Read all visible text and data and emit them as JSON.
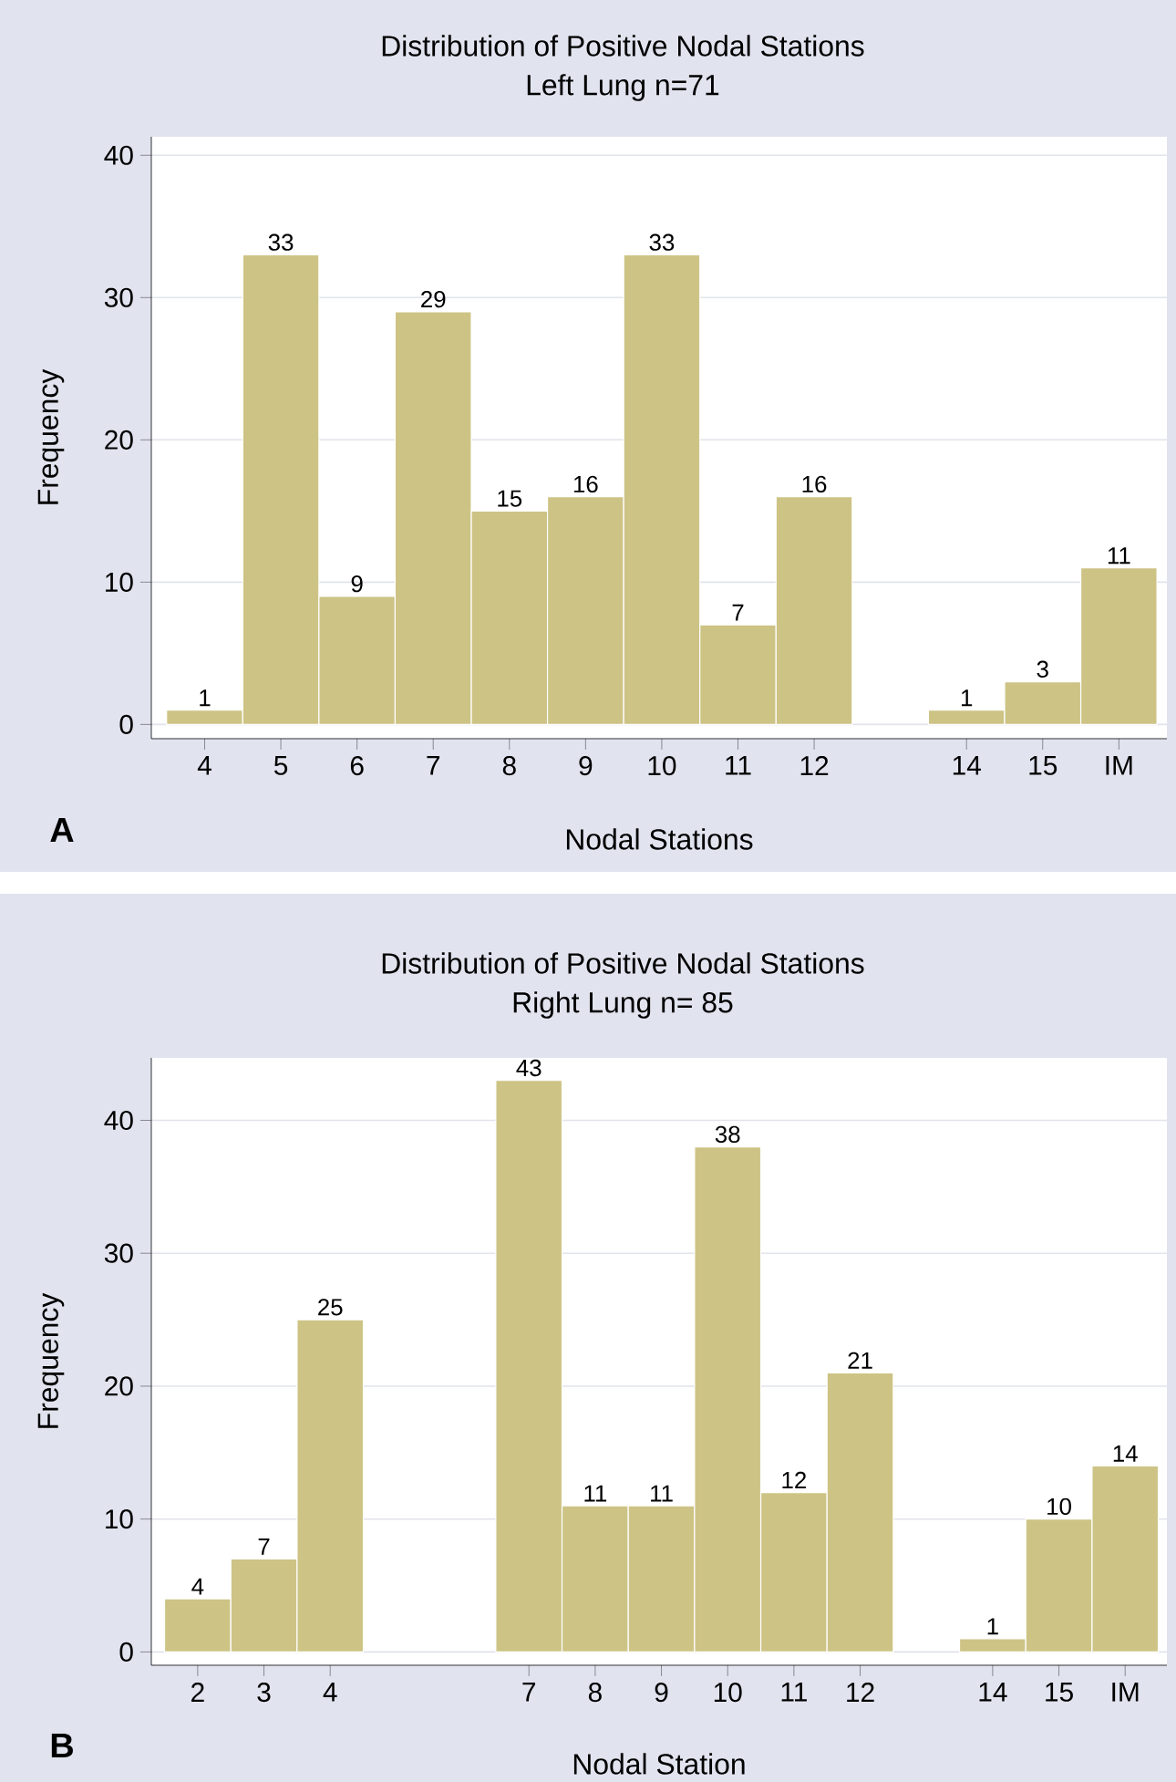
{
  "chart_data": [
    {
      "type": "bar",
      "title": "Distribution of Positive Nodal Stations",
      "subtitle": "Left Lung n=71",
      "xlabel": "Nodal Stations",
      "ylabel": "Frequency",
      "categories": [
        "4",
        "5",
        "6",
        "7",
        "8",
        "9",
        "10",
        "11",
        "12",
        null,
        "14",
        "15",
        "IM"
      ],
      "values": [
        1,
        33,
        9,
        29,
        15,
        16,
        33,
        7,
        16,
        null,
        1,
        3,
        11
      ],
      "color": "#cdc385",
      "ylim": [
        -1,
        41.3
      ],
      "yticks": [
        0,
        10,
        20,
        30,
        40
      ],
      "grid": "y",
      "data_labels": true,
      "annotations": [
        "A"
      ]
    },
    {
      "type": "bar",
      "title": "Distribution of Positive Nodal Stations",
      "subtitle": "Right Lung n= 85",
      "xlabel": "Nodal Station",
      "ylabel": "Frequency",
      "categories": [
        "2",
        "3",
        "4",
        null,
        null,
        "7",
        "8",
        "9",
        "10",
        "11",
        "12",
        null,
        "14",
        "15",
        "IM"
      ],
      "values": [
        4,
        7,
        25,
        null,
        null,
        43,
        11,
        11,
        38,
        12,
        21,
        null,
        1,
        10,
        14
      ],
      "color": "#cdc385",
      "ylim": [
        -1,
        44.7
      ],
      "yticks": [
        0,
        10,
        20,
        30,
        40
      ],
      "grid": "y",
      "data_labels": true,
      "annotations": [
        "B"
      ]
    }
  ]
}
